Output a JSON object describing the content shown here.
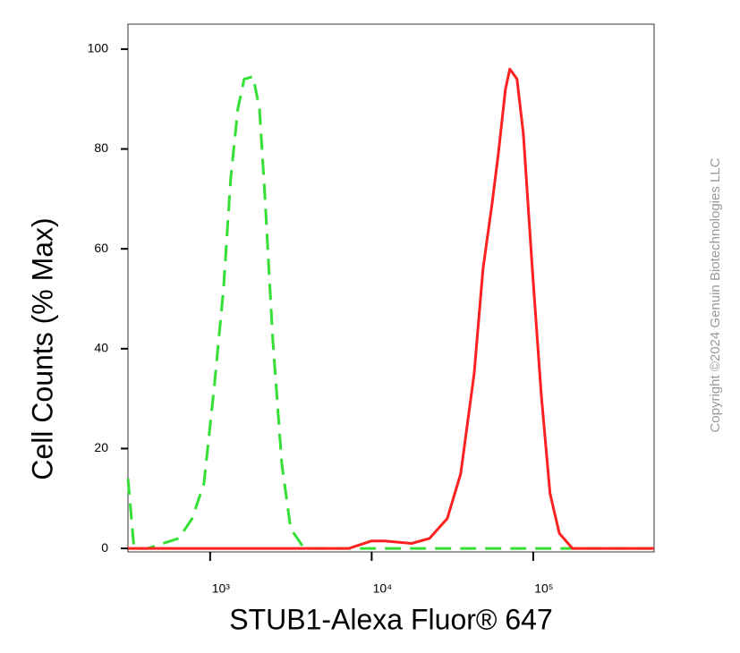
{
  "chart_data": {
    "type": "line",
    "xlabel": "STUB1-Alexa Fluor® 647",
    "ylabel": "Cell Counts (% Max)",
    "annotation": "Copyright ©2024 Genuin Biotechnologies LLC",
    "xscale": "log",
    "xlim": [
      310,
      560000
    ],
    "ylim": [
      -0.7,
      105
    ],
    "xticks": [
      {
        "value": 1000,
        "label": "10³"
      },
      {
        "value": 10000,
        "label": "10⁴"
      },
      {
        "value": 100000,
        "label": "10⁵"
      }
    ],
    "yticks": [
      0,
      20,
      40,
      60,
      80,
      100
    ],
    "series": [
      {
        "color": "#33e033",
        "dashed": true,
        "x": [
          310,
          338,
          410,
          640,
          775,
          915,
          1065,
          1210,
          1340,
          1485,
          1625,
          1845,
          2020,
          2180,
          2440,
          2775,
          3150,
          3820,
          560000
        ],
        "values": [
          14,
          0,
          0,
          2,
          6,
          13,
          33,
          52,
          74,
          88,
          94,
          94.5,
          88,
          71,
          42,
          17,
          4,
          0,
          0
        ]
      },
      {
        "color": "#ff2020",
        "dashed": false,
        "x": [
          310,
          7220,
          10000,
          12000,
          17650,
          22800,
          29400,
          35600,
          43100,
          48900,
          55600,
          60800,
          67300,
          71700,
          79400,
          86900,
          98700,
          112000,
          127000,
          145000,
          175000,
          560000
        ],
        "values": [
          0,
          0,
          1.5,
          1.5,
          1,
          2,
          6,
          15,
          35,
          56,
          69,
          79,
          92,
          96,
          94,
          83,
          56,
          31,
          11,
          3,
          0,
          0
        ]
      }
    ]
  }
}
